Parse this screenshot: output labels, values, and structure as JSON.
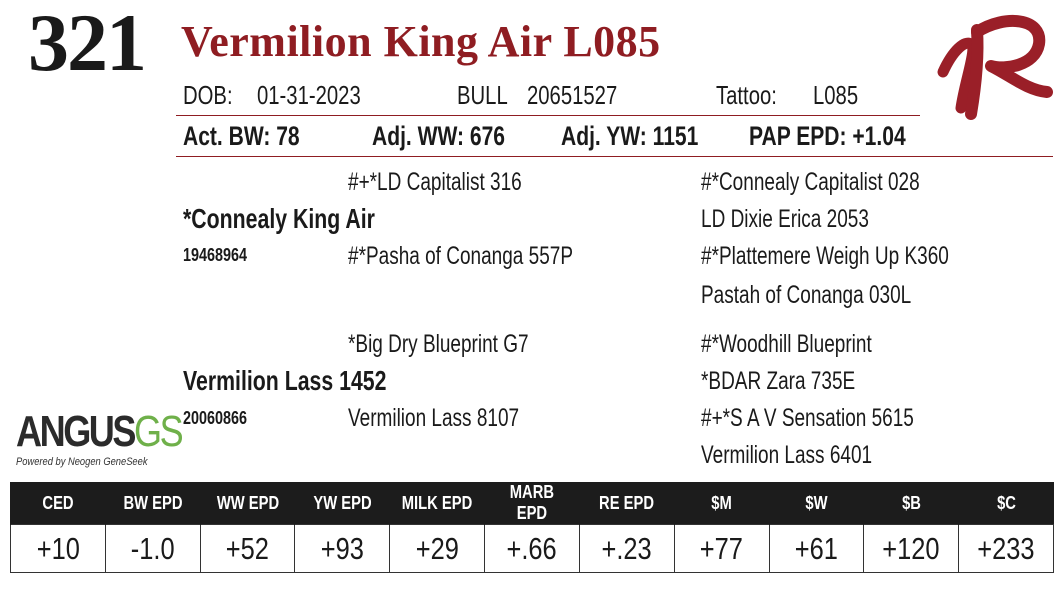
{
  "lot_number": "321",
  "animal_name": "Vermilion King Air L085",
  "identity": {
    "dob_label": "DOB:",
    "dob_value": "01-31-2023",
    "sex": "BULL",
    "registration": "20651527",
    "tattoo_label": "Tattoo:",
    "tattoo_value": "L085"
  },
  "performance": {
    "act_bw": "Act. BW: 78",
    "adj_ww": "Adj. WW: 676",
    "adj_yw": "Adj. YW: 1151",
    "pap_epd": "PAP EPD: +1.04"
  },
  "pedigree": {
    "sire": {
      "name": "*Connealy King Air",
      "reg": "19468964"
    },
    "sire_sire": "#+*LD Capitalist 316",
    "sire_dam": "#*Pasha of Conanga 557P",
    "sire_sire_sire": "#*Connealy Capitalist 028",
    "sire_sire_dam": "LD Dixie Erica 2053",
    "sire_dam_sire": "#*Plattemere Weigh Up K360",
    "sire_dam_dam": "Pastah of Conanga 030L",
    "dam": {
      "name": "Vermilion Lass 1452",
      "reg": "20060866"
    },
    "dam_sire": "*Big Dry Blueprint G7",
    "dam_dam": "Vermilion Lass 8107",
    "dam_sire_sire": "#*Woodhill Blueprint",
    "dam_sire_dam": "*BDAR Zara 735E",
    "dam_dam_sire": "#+*S A V Sensation 5615",
    "dam_dam_dam": "Vermilion Lass 6401"
  },
  "angus_logo": {
    "main": "ANGUS",
    "gs": "GS",
    "tagline": "Powered by Neogen GeneSeek"
  },
  "epd_table": {
    "headers": [
      "CED",
      "BW EPD",
      "WW EPD",
      "YW EPD",
      "MILK EPD",
      "MARB EPD",
      "RE EPD",
      "$M",
      "$W",
      "$B",
      "$C"
    ],
    "values": [
      "+10",
      "-1.0",
      "+52",
      "+93",
      "+29",
      "+.66",
      "+.23",
      "+77",
      "+61",
      "+120",
      "+233"
    ]
  },
  "colors": {
    "brand": "#8f1d22",
    "header_bg": "#1c1c1c",
    "gs_green": "#6fb04a"
  },
  "icons": {
    "ranch_logo": "vr-brand-logo"
  }
}
